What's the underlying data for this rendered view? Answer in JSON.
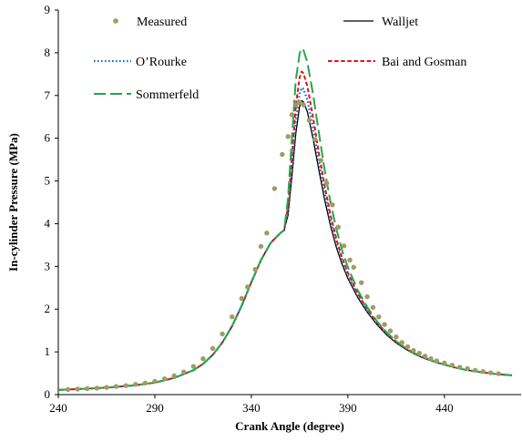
{
  "chart_data": {
    "type": "line",
    "title": "",
    "xlabel": "Crank Angle (degree)",
    "ylabel": "In-cylinder  Pressure (MPa)",
    "xlim": [
      240,
      475
    ],
    "ylim": [
      0,
      9
    ],
    "xticks": [
      240,
      290,
      340,
      390,
      440
    ],
    "yticks": [
      0,
      1,
      2,
      3,
      4,
      5,
      6,
      7,
      8,
      9
    ],
    "grid": false,
    "legend_placement": "top",
    "series": [
      {
        "name": "Measured",
        "style": "markers",
        "color": "#a39a64",
        "points": [
          [
            245,
            0.12
          ],
          [
            250,
            0.13
          ],
          [
            255,
            0.14
          ],
          [
            260,
            0.15
          ],
          [
            265,
            0.17
          ],
          [
            270,
            0.19
          ],
          [
            275,
            0.21
          ],
          [
            280,
            0.24
          ],
          [
            285,
            0.27
          ],
          [
            290,
            0.31
          ],
          [
            295,
            0.37
          ],
          [
            300,
            0.44
          ],
          [
            305,
            0.53
          ],
          [
            310,
            0.66
          ],
          [
            315,
            0.84
          ],
          [
            320,
            1.08
          ],
          [
            325,
            1.42
          ],
          [
            330,
            1.82
          ],
          [
            335,
            2.25
          ],
          [
            338,
            2.52
          ],
          [
            342,
            2.93
          ],
          [
            345,
            3.47
          ],
          [
            348,
            3.78
          ],
          [
            352,
            4.82
          ],
          [
            356,
            5.62
          ],
          [
            359,
            6.04
          ],
          [
            361,
            6.55
          ],
          [
            363,
            6.78
          ],
          [
            365,
            6.84
          ],
          [
            367,
            6.78
          ],
          [
            370,
            6.42
          ],
          [
            373,
            5.97
          ],
          [
            376,
            5.48
          ],
          [
            379,
            4.95
          ],
          [
            382,
            4.44
          ],
          [
            385,
            3.92
          ],
          [
            388,
            3.48
          ],
          [
            391,
            3.15
          ],
          [
            393,
            2.98
          ],
          [
            397,
            2.62
          ],
          [
            400,
            2.29
          ],
          [
            403,
            2.04
          ],
          [
            406,
            1.82
          ],
          [
            409,
            1.64
          ],
          [
            412,
            1.49
          ],
          [
            415,
            1.35
          ],
          [
            418,
            1.22
          ],
          [
            421,
            1.12
          ],
          [
            424,
            1.03
          ],
          [
            427,
            0.97
          ],
          [
            430,
            0.9
          ],
          [
            433,
            0.84
          ],
          [
            436,
            0.79
          ],
          [
            440,
            0.74
          ],
          [
            444,
            0.69
          ],
          [
            448,
            0.64
          ],
          [
            452,
            0.61
          ],
          [
            456,
            0.57
          ],
          [
            460,
            0.54
          ],
          [
            464,
            0.51
          ],
          [
            468,
            0.49
          ]
        ]
      },
      {
        "name": "Walljet",
        "style": "solid",
        "color": "#000000",
        "points": [
          [
            240,
            0.11
          ],
          [
            250,
            0.13
          ],
          [
            260,
            0.15
          ],
          [
            270,
            0.18
          ],
          [
            280,
            0.22
          ],
          [
            290,
            0.28
          ],
          [
            300,
            0.39
          ],
          [
            310,
            0.57
          ],
          [
            315,
            0.72
          ],
          [
            320,
            0.93
          ],
          [
            325,
            1.22
          ],
          [
            330,
            1.6
          ],
          [
            335,
            2.08
          ],
          [
            340,
            2.63
          ],
          [
            345,
            3.15
          ],
          [
            350,
            3.55
          ],
          [
            355,
            3.78
          ],
          [
            357,
            3.85
          ],
          [
            359,
            4.2
          ],
          [
            361,
            5.1
          ],
          [
            363,
            6.1
          ],
          [
            365,
            6.75
          ],
          [
            366,
            6.88
          ],
          [
            367,
            6.85
          ],
          [
            369,
            6.62
          ],
          [
            372,
            5.98
          ],
          [
            375,
            5.25
          ],
          [
            378,
            4.55
          ],
          [
            381,
            3.95
          ],
          [
            384,
            3.45
          ],
          [
            387,
            3.05
          ],
          [
            390,
            2.72
          ],
          [
            395,
            2.28
          ],
          [
            400,
            1.93
          ],
          [
            405,
            1.64
          ],
          [
            410,
            1.4
          ],
          [
            415,
            1.21
          ],
          [
            420,
            1.06
          ],
          [
            425,
            0.94
          ],
          [
            430,
            0.84
          ],
          [
            435,
            0.76
          ],
          [
            440,
            0.7
          ],
          [
            445,
            0.64
          ],
          [
            450,
            0.59
          ],
          [
            455,
            0.55
          ],
          [
            460,
            0.52
          ],
          [
            465,
            0.49
          ],
          [
            470,
            0.47
          ],
          [
            475,
            0.45
          ]
        ]
      },
      {
        "name": "O’Rourke",
        "style": "dotted",
        "color": "#1f6fc4",
        "points": [
          [
            240,
            0.11
          ],
          [
            250,
            0.13
          ],
          [
            260,
            0.15
          ],
          [
            270,
            0.18
          ],
          [
            280,
            0.22
          ],
          [
            290,
            0.28
          ],
          [
            300,
            0.39
          ],
          [
            310,
            0.57
          ],
          [
            315,
            0.72
          ],
          [
            320,
            0.93
          ],
          [
            325,
            1.22
          ],
          [
            330,
            1.6
          ],
          [
            335,
            2.08
          ],
          [
            340,
            2.63
          ],
          [
            345,
            3.15
          ],
          [
            350,
            3.55
          ],
          [
            355,
            3.78
          ],
          [
            357,
            3.85
          ],
          [
            359,
            4.3
          ],
          [
            361,
            5.3
          ],
          [
            363,
            6.4
          ],
          [
            365,
            7.05
          ],
          [
            366,
            7.18
          ],
          [
            367,
            7.15
          ],
          [
            369,
            6.9
          ],
          [
            372,
            6.22
          ],
          [
            375,
            5.45
          ],
          [
            378,
            4.72
          ],
          [
            381,
            4.08
          ],
          [
            384,
            3.55
          ],
          [
            387,
            3.13
          ],
          [
            390,
            2.79
          ],
          [
            395,
            2.33
          ],
          [
            400,
            1.97
          ],
          [
            405,
            1.67
          ],
          [
            410,
            1.43
          ],
          [
            415,
            1.23
          ],
          [
            420,
            1.07
          ],
          [
            425,
            0.95
          ],
          [
            430,
            0.85
          ],
          [
            435,
            0.77
          ],
          [
            440,
            0.7
          ],
          [
            445,
            0.64
          ],
          [
            450,
            0.59
          ],
          [
            455,
            0.55
          ],
          [
            460,
            0.52
          ],
          [
            465,
            0.49
          ],
          [
            470,
            0.47
          ],
          [
            475,
            0.45
          ]
        ]
      },
      {
        "name": "Bai and Gosman",
        "style": "dashed",
        "color": "#e0151b",
        "points": [
          [
            240,
            0.11
          ],
          [
            250,
            0.13
          ],
          [
            260,
            0.15
          ],
          [
            270,
            0.18
          ],
          [
            280,
            0.22
          ],
          [
            290,
            0.28
          ],
          [
            300,
            0.39
          ],
          [
            310,
            0.57
          ],
          [
            315,
            0.72
          ],
          [
            320,
            0.93
          ],
          [
            325,
            1.22
          ],
          [
            330,
            1.6
          ],
          [
            335,
            2.08
          ],
          [
            340,
            2.63
          ],
          [
            345,
            3.15
          ],
          [
            350,
            3.55
          ],
          [
            355,
            3.78
          ],
          [
            357,
            3.85
          ],
          [
            359,
            4.4
          ],
          [
            361,
            5.55
          ],
          [
            363,
            6.75
          ],
          [
            365,
            7.42
          ],
          [
            366,
            7.56
          ],
          [
            367,
            7.52
          ],
          [
            369,
            7.22
          ],
          [
            372,
            6.48
          ],
          [
            375,
            5.65
          ],
          [
            378,
            4.88
          ],
          [
            381,
            4.2
          ],
          [
            384,
            3.65
          ],
          [
            387,
            3.2
          ],
          [
            390,
            2.85
          ],
          [
            395,
            2.37
          ],
          [
            400,
            2.0
          ],
          [
            405,
            1.69
          ],
          [
            410,
            1.44
          ],
          [
            415,
            1.24
          ],
          [
            420,
            1.08
          ],
          [
            425,
            0.96
          ],
          [
            430,
            0.86
          ],
          [
            435,
            0.77
          ],
          [
            440,
            0.7
          ],
          [
            445,
            0.64
          ],
          [
            450,
            0.59
          ],
          [
            455,
            0.55
          ],
          [
            460,
            0.52
          ],
          [
            465,
            0.49
          ],
          [
            470,
            0.47
          ],
          [
            475,
            0.45
          ]
        ]
      },
      {
        "name": "Sommerfeld",
        "style": "longdash",
        "color": "#21a84a",
        "points": [
          [
            240,
            0.11
          ],
          [
            250,
            0.13
          ],
          [
            260,
            0.15
          ],
          [
            270,
            0.18
          ],
          [
            280,
            0.22
          ],
          [
            290,
            0.28
          ],
          [
            300,
            0.39
          ],
          [
            310,
            0.57
          ],
          [
            315,
            0.72
          ],
          [
            320,
            0.93
          ],
          [
            325,
            1.22
          ],
          [
            330,
            1.6
          ],
          [
            335,
            2.08
          ],
          [
            340,
            2.63
          ],
          [
            345,
            3.15
          ],
          [
            350,
            3.55
          ],
          [
            355,
            3.78
          ],
          [
            357,
            3.85
          ],
          [
            359,
            4.6
          ],
          [
            361,
            6.0
          ],
          [
            363,
            7.35
          ],
          [
            365,
            7.98
          ],
          [
            366,
            8.1
          ],
          [
            367,
            8.06
          ],
          [
            369,
            7.78
          ],
          [
            372,
            7.02
          ],
          [
            375,
            6.12
          ],
          [
            378,
            5.25
          ],
          [
            381,
            4.5
          ],
          [
            384,
            3.88
          ],
          [
            387,
            3.38
          ],
          [
            390,
            2.98
          ],
          [
            395,
            2.45
          ],
          [
            400,
            2.05
          ],
          [
            405,
            1.72
          ],
          [
            410,
            1.46
          ],
          [
            415,
            1.25
          ],
          [
            420,
            1.09
          ],
          [
            425,
            0.96
          ],
          [
            430,
            0.86
          ],
          [
            435,
            0.77
          ],
          [
            440,
            0.7
          ],
          [
            445,
            0.64
          ],
          [
            450,
            0.59
          ],
          [
            455,
            0.55
          ],
          [
            460,
            0.52
          ],
          [
            465,
            0.49
          ],
          [
            470,
            0.47
          ],
          [
            475,
            0.45
          ]
        ]
      }
    ]
  }
}
